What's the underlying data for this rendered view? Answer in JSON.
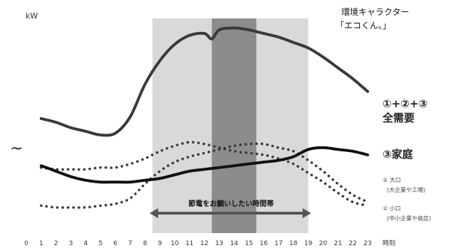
{
  "chart_data": {
    "type": "line",
    "y_unit_label": "kW",
    "x_axis_label": "時刻",
    "x_ticks": [
      0,
      1,
      2,
      3,
      4,
      5,
      6,
      7,
      8,
      9,
      10,
      11,
      12,
      13,
      14,
      15,
      16,
      17,
      18,
      19,
      20,
      21,
      22,
      23
    ],
    "xlim": [
      0,
      23
    ],
    "ylim": [
      0,
      100
    ],
    "axis_break": true,
    "shaded_periods": [
      {
        "from": 8.5,
        "to": 19,
        "shade": "light",
        "color": "#d9d9d9"
      },
      {
        "from": 12.5,
        "to": 15.5,
        "shade": "dark",
        "color": "#8c8c8c"
      }
    ],
    "peak_period_label": "節電をお願いしたい時間帯",
    "series": [
      {
        "name": "①+②+③ 全需要",
        "style": "solid-thick",
        "color": "#3a3a3a",
        "x": [
          1,
          2,
          3,
          4,
          5,
          6,
          7,
          8,
          9,
          10,
          11,
          12,
          12.5,
          13,
          14,
          15,
          16,
          17,
          18,
          19,
          20,
          21,
          22,
          23
        ],
        "y": [
          51,
          49,
          46,
          44,
          42,
          43,
          52,
          70,
          83,
          92,
          97,
          98,
          95,
          100,
          101,
          100,
          98,
          96,
          93,
          90,
          85,
          79,
          73,
          66
        ]
      },
      {
        "name": "③家庭",
        "style": "solid-thick",
        "color": "#111111",
        "x": [
          1,
          2,
          3,
          4,
          5,
          6,
          7,
          8,
          9,
          10,
          11,
          12,
          13,
          14,
          15,
          16,
          17,
          18,
          19,
          20,
          21,
          22,
          23
        ],
        "y": [
          25,
          22,
          19,
          17,
          16,
          16,
          16,
          17,
          18,
          20,
          22,
          23,
          24,
          25,
          26,
          27,
          28,
          30,
          34,
          35,
          34,
          33,
          31
        ]
      },
      {
        "name": "② 大口(大企業や工場)",
        "style": "dotted",
        "color": "#3a3a3a",
        "x": [
          1,
          2,
          3,
          4,
          5,
          6,
          7,
          8,
          9,
          10,
          11,
          12,
          13,
          14,
          15,
          16,
          17,
          18,
          19,
          20,
          21,
          22,
          23
        ],
        "y": [
          24,
          23,
          23,
          23,
          24,
          24,
          26,
          29,
          33,
          36,
          38,
          37,
          35,
          33,
          32,
          31,
          29,
          26,
          21,
          16,
          10,
          5,
          3
        ]
      },
      {
        "name": "② 小口(中小企業や商店)",
        "style": "dotted",
        "color": "#3a3a3a",
        "x": [
          1,
          2,
          3,
          4,
          5,
          6,
          7,
          8,
          9,
          10,
          11,
          12,
          13,
          14,
          15,
          16,
          17,
          18,
          19,
          20,
          21,
          22,
          23
        ],
        "y": [
          3,
          2,
          2,
          2,
          3,
          4,
          7,
          15,
          22,
          27,
          30,
          32,
          34,
          36,
          37,
          37,
          35,
          33,
          28,
          22,
          15,
          9,
          5
        ]
      }
    ],
    "legend": {
      "total": {
        "line1": "①+②+③",
        "line2": "全需要"
      },
      "home": "③家庭",
      "large": {
        "line1": "② 大口",
        "line2": "(大企業や工場)"
      },
      "small": {
        "line1": "② 小口",
        "line2": "(中小企業や商店)"
      }
    },
    "character_note": {
      "line1": "環境キャラクター",
      "line2": "「エコくん。」"
    }
  }
}
